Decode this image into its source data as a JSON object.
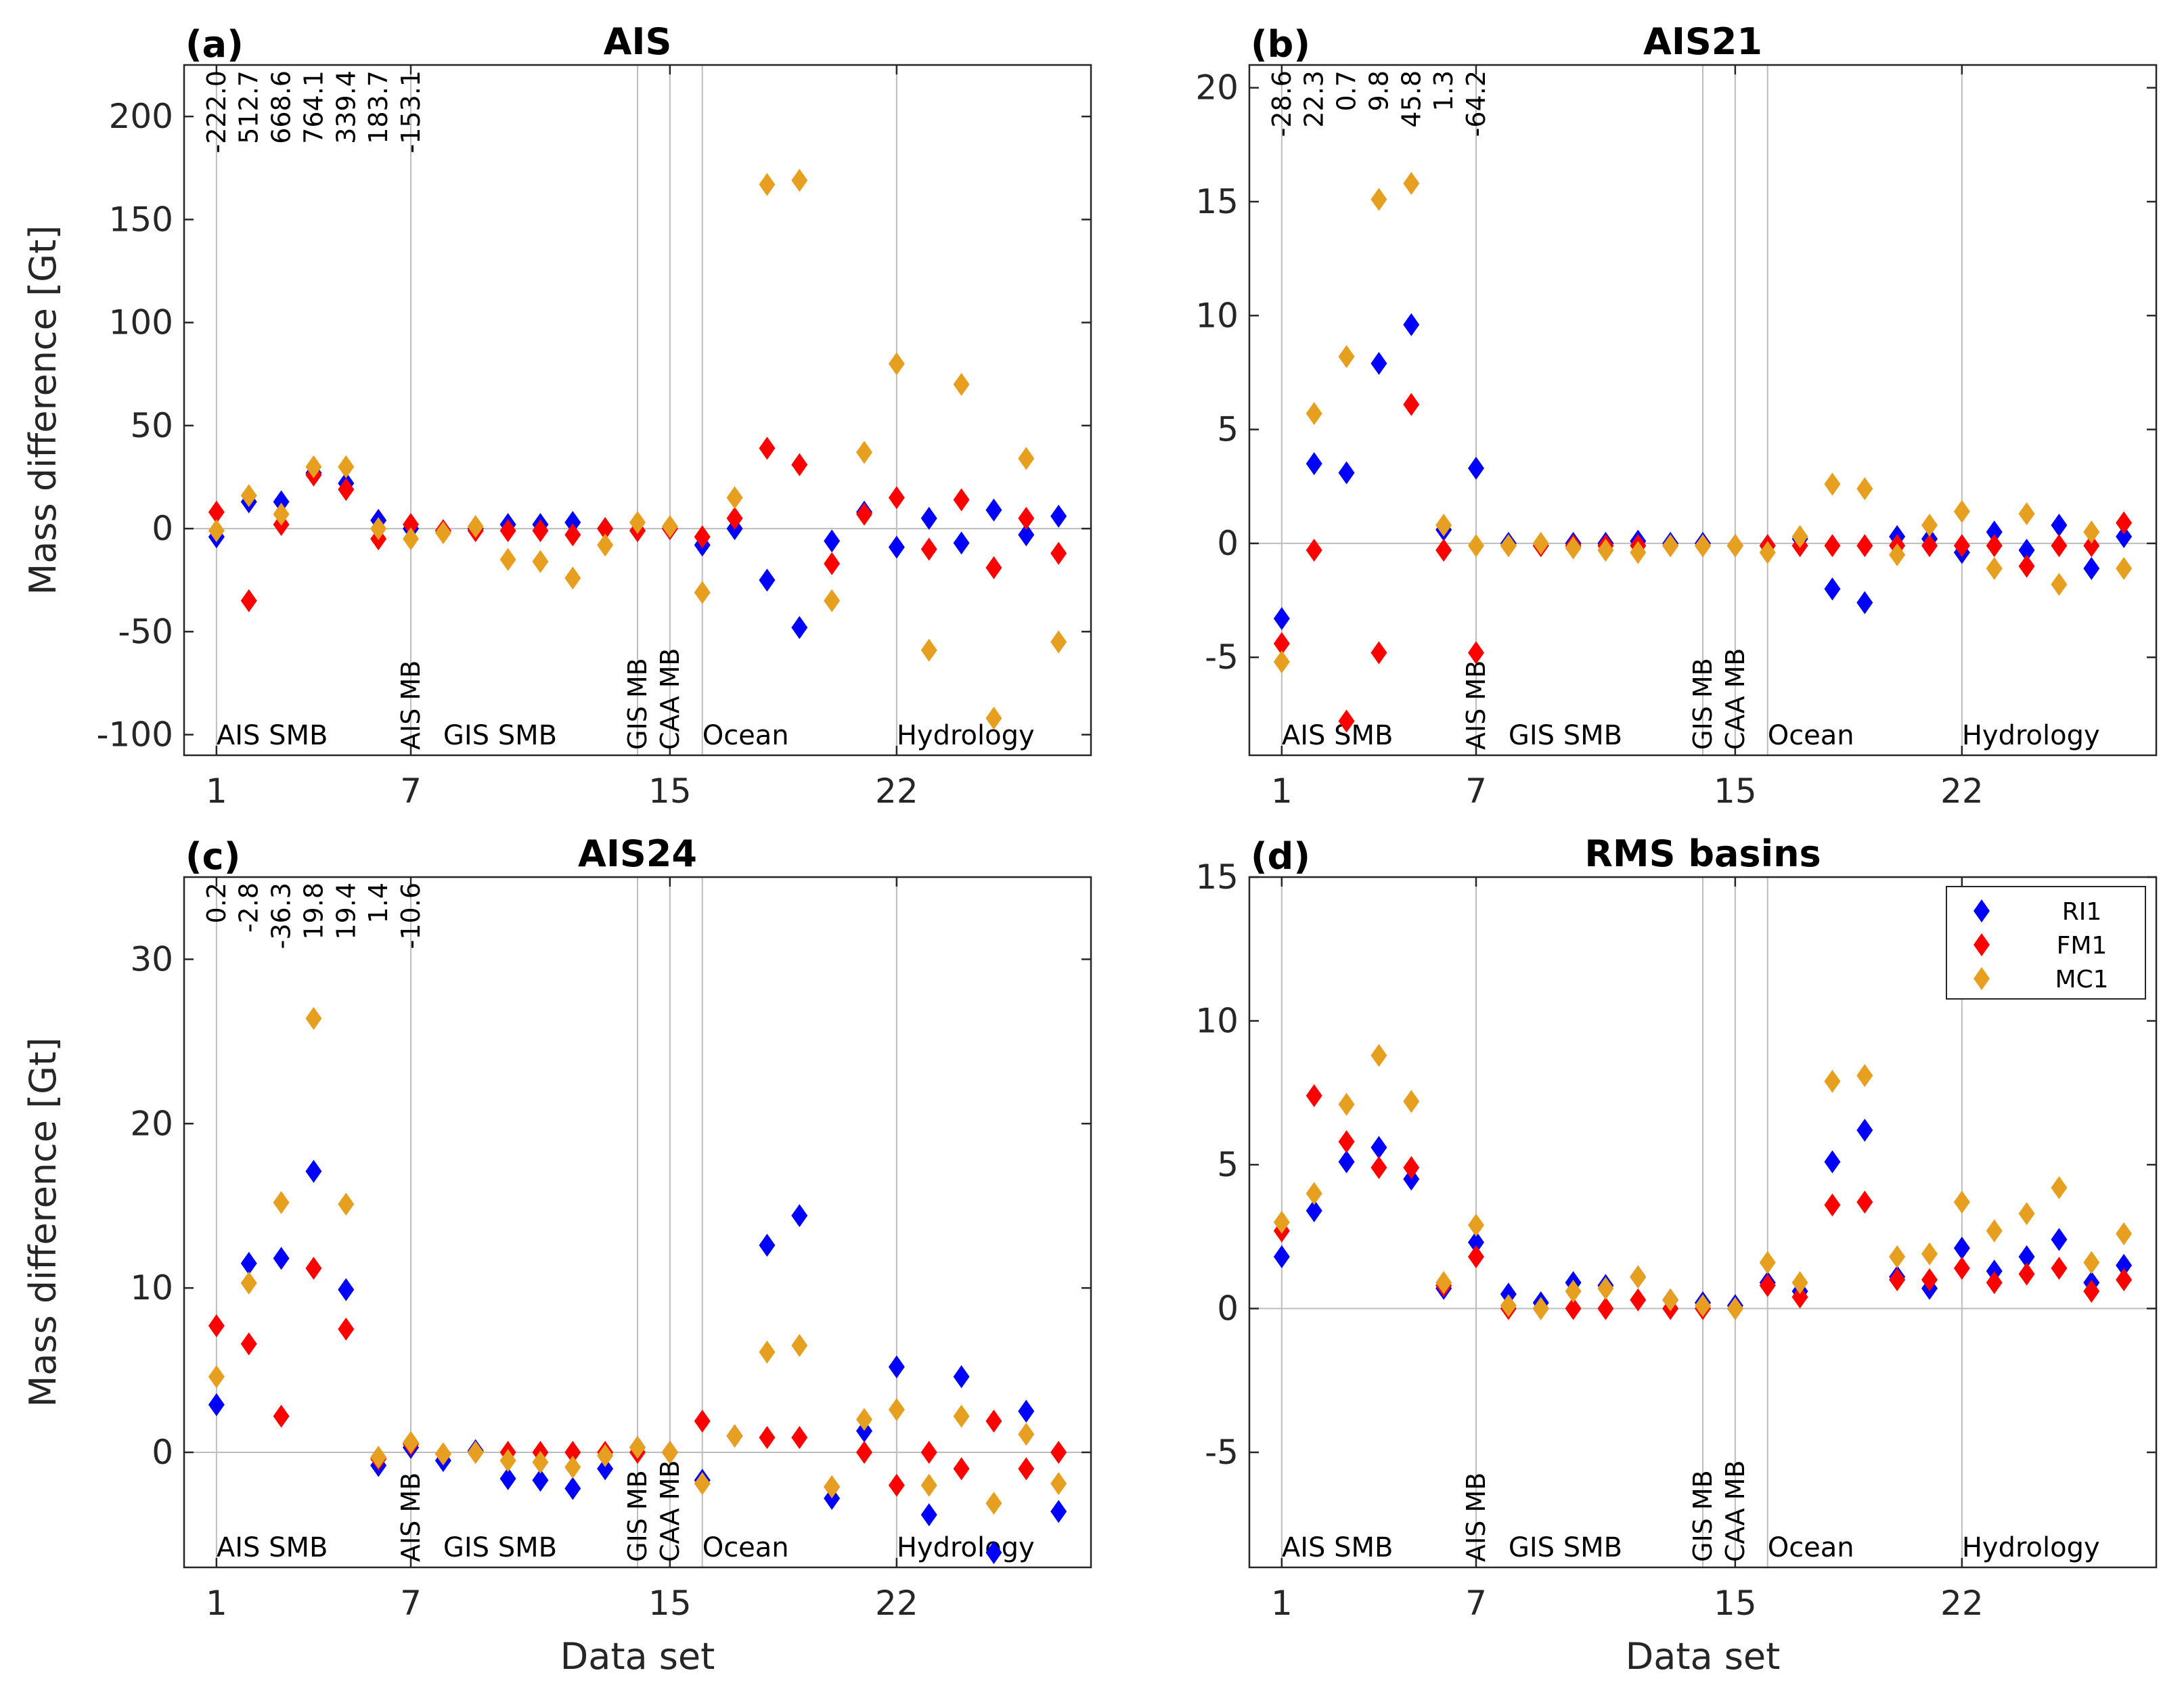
{
  "chart_data": [
    {
      "type": "scatter",
      "panel_label": "(a)",
      "title": "AIS",
      "ylabel": "Mass difference [Gt]",
      "xlabel": "",
      "xlim": [
        0,
        28
      ],
      "ylim": [
        -110,
        225
      ],
      "yticks": [
        "-100",
        "-50",
        "0",
        "50",
        "100",
        "150",
        "200"
      ],
      "xticks": [
        "1",
        "7",
        "15",
        "22"
      ],
      "vlines": [
        1,
        7,
        14,
        15,
        16,
        22
      ],
      "vline_labels": [
        {
          "x": 7,
          "text": "AIS MB"
        },
        {
          "x": 14,
          "text": "GIS MB"
        },
        {
          "x": 15,
          "text": "CAA MB"
        }
      ],
      "group_labels": [
        {
          "x": 1,
          "text": "AIS SMB"
        },
        {
          "x": 8,
          "text": "GIS SMB"
        },
        {
          "x": 16,
          "text": "Ocean"
        },
        {
          "x": 22,
          "text": "Hydrology"
        }
      ],
      "annotations": [
        {
          "x": 1,
          "text": "-222.0"
        },
        {
          "x": 2,
          "text": "512.7"
        },
        {
          "x": 3,
          "text": "668.6"
        },
        {
          "x": 4,
          "text": "764.1"
        },
        {
          "x": 5,
          "text": "339.4"
        },
        {
          "x": 6,
          "text": "183.7"
        },
        {
          "x": 7,
          "text": "-153.1"
        }
      ],
      "series": [
        {
          "name": "RI1",
          "color": "#0000ff",
          "values": [
            -4,
            13,
            13,
            27,
            22,
            4,
            0,
            -1,
            0,
            2,
            2,
            3,
            0,
            -1,
            0,
            -8,
            0,
            -25,
            -48,
            -6,
            8,
            -9,
            5,
            -7,
            9,
            -3,
            6
          ]
        },
        {
          "name": "FM1",
          "color": "#ff0000",
          "values": [
            8,
            -35,
            2,
            26,
            19,
            -5,
            2,
            -1,
            -1,
            -1,
            -1,
            -3,
            0,
            -1,
            0,
            -4,
            5,
            39,
            31,
            -17,
            7,
            15,
            -10,
            14,
            -19,
            5,
            -12
          ]
        },
        {
          "name": "MC1",
          "color": "#e69f1f",
          "values": [
            -1,
            16,
            7,
            30,
            30,
            0,
            -5,
            -2,
            1,
            -15,
            -16,
            -24,
            -8,
            3,
            1,
            -31,
            15,
            167,
            169,
            -35,
            37,
            80,
            -59,
            70,
            -92,
            34,
            -55
          ]
        }
      ]
    },
    {
      "type": "scatter",
      "panel_label": "(b)",
      "title": "AIS21",
      "ylabel": "",
      "xlabel": "",
      "xlim": [
        0,
        28
      ],
      "ylim": [
        -9.3,
        21
      ],
      "yticks": [
        "-5",
        "0",
        "5",
        "10",
        "15",
        "20"
      ],
      "xticks": [
        "1",
        "7",
        "15",
        "22"
      ],
      "vlines": [
        1,
        7,
        14,
        15,
        16,
        22
      ],
      "vline_labels": [
        {
          "x": 7,
          "text": "AIS MB"
        },
        {
          "x": 14,
          "text": "GIS MB"
        },
        {
          "x": 15,
          "text": "CAA MB"
        }
      ],
      "group_labels": [
        {
          "x": 1,
          "text": "AIS SMB"
        },
        {
          "x": 8,
          "text": "GIS SMB"
        },
        {
          "x": 16,
          "text": "Ocean"
        },
        {
          "x": 22,
          "text": "Hydrology"
        }
      ],
      "annotations": [
        {
          "x": 1,
          "text": "-28.6"
        },
        {
          "x": 2,
          "text": "22.3"
        },
        {
          "x": 3,
          "text": "0.7"
        },
        {
          "x": 4,
          "text": "9.8"
        },
        {
          "x": 5,
          "text": "45.8"
        },
        {
          "x": 6,
          "text": "1.3"
        },
        {
          "x": 7,
          "text": "-64.2"
        }
      ],
      "series": [
        {
          "name": "RI1",
          "color": "#0000ff",
          "values": [
            -3.3,
            3.5,
            3.1,
            7.9,
            9.6,
            0.6,
            3.3,
            0,
            -0.1,
            0,
            0,
            0.1,
            0,
            0,
            -0.1,
            -0.1,
            0.2,
            -2,
            -2.6,
            0.3,
            0.2,
            -0.4,
            0.5,
            -0.3,
            0.8,
            -1.1,
            0.3
          ]
        },
        {
          "name": "FM1",
          "color": "#ff0000",
          "values": [
            -4.4,
            -0.3,
            -7.8,
            -4.8,
            6.1,
            -0.3,
            -4.8,
            -0.1,
            -0.1,
            -0.1,
            -0.1,
            -0.1,
            -0.1,
            -0.1,
            -0.1,
            -0.1,
            -0.1,
            -0.1,
            -0.1,
            -0.1,
            -0.1,
            -0.1,
            -0.1,
            -1,
            -0.1,
            -0.1,
            0.9
          ]
        },
        {
          "name": "MC1",
          "color": "#e69f1f",
          "values": [
            -5.2,
            5.7,
            8.2,
            15.1,
            15.8,
            0.8,
            -0.1,
            -0.1,
            0,
            -0.2,
            -0.3,
            -0.4,
            -0.1,
            -0.1,
            -0.1,
            -0.4,
            0.3,
            2.6,
            2.4,
            -0.5,
            0.8,
            1.4,
            -1.1,
            1.3,
            -1.8,
            0.5,
            -1.1
          ]
        }
      ]
    },
    {
      "type": "scatter",
      "panel_label": "(c)",
      "title": "AIS24",
      "ylabel": "Mass difference [Gt]",
      "xlabel": "Data set",
      "xlim": [
        0,
        28
      ],
      "ylim": [
        -7,
        35
      ],
      "yticks": [
        "0",
        "10",
        "20",
        "30"
      ],
      "xticks": [
        "1",
        "7",
        "15",
        "22"
      ],
      "vlines": [
        1,
        7,
        14,
        15,
        16,
        22
      ],
      "vline_labels": [
        {
          "x": 7,
          "text": "AIS MB"
        },
        {
          "x": 14,
          "text": "GIS MB"
        },
        {
          "x": 15,
          "text": "CAA MB"
        }
      ],
      "group_labels": [
        {
          "x": 1,
          "text": "AIS SMB"
        },
        {
          "x": 8,
          "text": "GIS SMB"
        },
        {
          "x": 16,
          "text": "Ocean"
        },
        {
          "x": 22,
          "text": "Hydrology"
        }
      ],
      "annotations": [
        {
          "x": 1,
          "text": "0.2"
        },
        {
          "x": 2,
          "text": "-2.8"
        },
        {
          "x": 3,
          "text": "-36.3"
        },
        {
          "x": 4,
          "text": "19.8"
        },
        {
          "x": 5,
          "text": "19.4"
        },
        {
          "x": 6,
          "text": "1.4"
        },
        {
          "x": 7,
          "text": "-10.6"
        }
      ],
      "series": [
        {
          "name": "RI1",
          "color": "#0000ff",
          "values": [
            2.9,
            11.5,
            11.8,
            17.1,
            9.9,
            -0.8,
            0.3,
            -0.5,
            0.1,
            -1.6,
            -1.7,
            -2.2,
            -1,
            0.3,
            0,
            -1.7,
            1,
            12.6,
            14.4,
            -2.8,
            1.3,
            5.2,
            -3.8,
            4.6,
            -6.1,
            2.5,
            -3.6
          ]
        },
        {
          "name": "FM1",
          "color": "#ff0000",
          "values": [
            7.7,
            6.6,
            2.2,
            11.2,
            7.5,
            -0.4,
            0.5,
            -0.1,
            0,
            0,
            0,
            0,
            0,
            0,
            0,
            1.9,
            1,
            0.9,
            0.9,
            -2.1,
            0,
            -2,
            0,
            -1,
            1.9,
            -1,
            0
          ]
        },
        {
          "name": "MC1",
          "color": "#e69f1f",
          "values": [
            4.6,
            10.3,
            15.2,
            26.4,
            15.1,
            -0.3,
            0.6,
            -0.1,
            0,
            -0.5,
            -0.6,
            -0.9,
            -0.2,
            0.3,
            0,
            -1.9,
            1,
            6.1,
            6.5,
            -2.1,
            2,
            2.6,
            -2,
            2.2,
            -3.1,
            1.1,
            -1.9
          ]
        }
      ]
    },
    {
      "type": "scatter",
      "panel_label": "(d)",
      "title": "RMS basins",
      "ylabel": "",
      "xlabel": "Data set",
      "xlim": [
        0,
        28
      ],
      "ylim": [
        -9,
        15
      ],
      "yticks": [
        "-5",
        "0",
        "5",
        "10",
        "15"
      ],
      "xticks": [
        "1",
        "7",
        "15",
        "22"
      ],
      "vlines": [
        1,
        7,
        14,
        15,
        16,
        22
      ],
      "vline_labels": [
        {
          "x": 7,
          "text": "AIS MB"
        },
        {
          "x": 14,
          "text": "GIS MB"
        },
        {
          "x": 15,
          "text": "CAA MB"
        }
      ],
      "group_labels": [
        {
          "x": 1,
          "text": "AIS SMB"
        },
        {
          "x": 8,
          "text": "GIS SMB"
        },
        {
          "x": 16,
          "text": "Ocean"
        },
        {
          "x": 22,
          "text": "Hydrology"
        }
      ],
      "annotations": [],
      "legend": [
        "RI1",
        "FM1",
        "MC1"
      ],
      "legend_position": "top-right",
      "series": [
        {
          "name": "RI1",
          "color": "#0000ff",
          "values": [
            1.8,
            3.4,
            5.1,
            5.6,
            4.5,
            0.7,
            2.3,
            0.5,
            0.2,
            0.9,
            0.8,
            1.1,
            0.3,
            0.2,
            0.1,
            0.9,
            0.6,
            5.1,
            6.2,
            1.1,
            0.7,
            2.1,
            1.3,
            1.8,
            2.4,
            0.9,
            1.5
          ]
        },
        {
          "name": "FM1",
          "color": "#ff0000",
          "values": [
            2.7,
            7.4,
            5.8,
            4.9,
            4.9,
            0.8,
            1.8,
            0,
            0,
            0,
            0,
            0.3,
            0,
            0,
            0,
            0.8,
            0.4,
            3.6,
            3.7,
            1,
            1,
            1.4,
            0.9,
            1.2,
            1.4,
            0.6,
            1
          ]
        },
        {
          "name": "MC1",
          "color": "#e69f1f",
          "values": [
            3,
            4,
            7.1,
            8.8,
            7.2,
            0.9,
            2.9,
            0.1,
            0,
            0.6,
            0.7,
            1.1,
            0.3,
            0.1,
            0,
            1.6,
            0.9,
            7.9,
            8.1,
            1.8,
            1.9,
            3.7,
            2.7,
            3.3,
            4.2,
            1.6,
            2.6
          ]
        }
      ]
    }
  ]
}
